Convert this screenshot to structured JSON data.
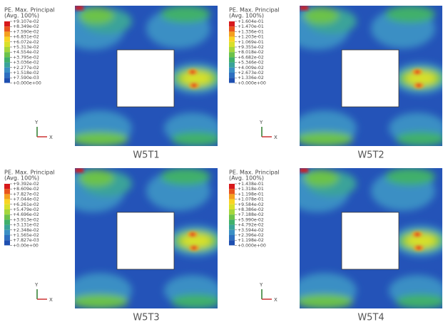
{
  "panels": [
    {
      "caption": "W5T1",
      "legend": {
        "title": "PE. Max. Principal",
        "subtitle": "(Avg. 100%)",
        "labels": [
          "+9.107e-02",
          "+8.349e-02",
          "+7.590e-02",
          "+6.831e-02",
          "+6.072e-02",
          "+5.313e-02",
          "+4.554e-02",
          "+3.795e-02",
          "+3.036e-02",
          "+2.277e-02",
          "+1.518e-02",
          "+7.590e-03",
          "+0.000e+00"
        ]
      },
      "axes": {
        "y": "Y",
        "x": "X"
      }
    },
    {
      "caption": "W5T2",
      "legend": {
        "title": "PE. Max. Principal",
        "subtitle": "(Avg. 100%)",
        "labels": [
          "+1.604e-01",
          "+1.470e-01",
          "+1.336e-01",
          "+1.203e-01",
          "+1.069e-01",
          "+9.355e-02",
          "+8.018e-02",
          "+6.682e-02",
          "+5.346e-02",
          "+4.009e-02",
          "+2.673e-02",
          "+1.336e-02",
          "+0.000e+00"
        ]
      },
      "axes": {
        "y": "Y",
        "x": "X"
      }
    },
    {
      "caption": "W5T3",
      "legend": {
        "title": "PE. Max. Principal",
        "subtitle": "(Avg. 100%)",
        "labels": [
          "+9.392e-02",
          "+8.609e-02",
          "+7.827e-02",
          "+7.044e-02",
          "+6.261e-02",
          "+5.479e-02",
          "+4.696e-02",
          "+3.913e-02",
          "+3.131e-02",
          "+2.348e-02",
          "+1.565e-02",
          "+7.827e-03",
          "+0.00e+00"
        ]
      },
      "axes": {
        "y": "Y",
        "x": "X"
      }
    },
    {
      "caption": "W5T4",
      "legend": {
        "title": "PE. Max. Principal",
        "subtitle": "(Avg. 100%)",
        "labels": [
          "+1.438e-01",
          "+1.318e-01",
          "+1.198e-01",
          "+1.078e-01",
          "+9.584e-02",
          "+8.386e-02",
          "+7.188e-02",
          "+5.990e-02",
          "+4.792e-02",
          "+3.594e-02",
          "+2.396e-02",
          "+1.198e-02",
          "+0.000e+00"
        ]
      },
      "axes": {
        "y": "Y",
        "x": "X"
      }
    }
  ]
}
